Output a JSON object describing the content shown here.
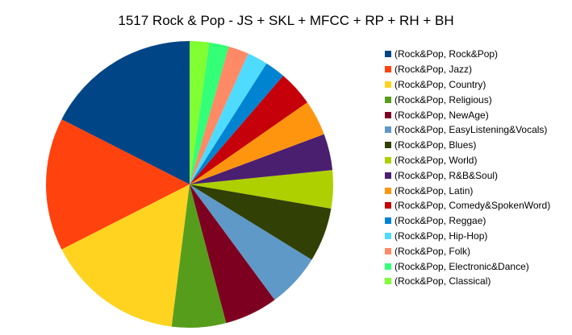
{
  "chart_data": {
    "type": "pie",
    "title": "1517 Rock & Pop - JS + SKL + MFCC + RP + RH + BH",
    "legend_position": "right",
    "slices": [
      {
        "label": "(Rock&Pop, Rock&Pop)",
        "value": 17.5,
        "color": "#004586"
      },
      {
        "label": "(Rock&Pop, Jazz)",
        "value": 15.0,
        "color": "#ff420e"
      },
      {
        "label": "(Rock&Pop, Country)",
        "value": 15.5,
        "color": "#ffd320"
      },
      {
        "label": "(Rock&Pop, Religious)",
        "value": 6.1,
        "color": "#579d1c"
      },
      {
        "label": "(Rock&Pop, NewAge)",
        "value": 6.0,
        "color": "#7e0021"
      },
      {
        "label": "(Rock&Pop, EasyListening&Vocals)",
        "value": 6.1,
        "color": "#5f99c7"
      },
      {
        "label": "(Rock&Pop, Blues)",
        "value": 6.1,
        "color": "#314004"
      },
      {
        "label": "(Rock&Pop, World)",
        "value": 4.3,
        "color": "#aecf00"
      },
      {
        "label": "(Rock&Pop, R&B&Soul)",
        "value": 4.1,
        "color": "#4b1f6f"
      },
      {
        "label": "(Rock&Pop, Latin)",
        "value": 4.0,
        "color": "#ff950e"
      },
      {
        "label": "(Rock&Pop, Comedy&SpokenWord)",
        "value": 4.0,
        "color": "#c5000b"
      },
      {
        "label": "(Rock&Pop, Reggae)",
        "value": 2.3,
        "color": "#0084d1"
      },
      {
        "label": "(Rock&Pop, Hip-Hop)",
        "value": 2.3,
        "color": "#4fdbff"
      },
      {
        "label": "(Rock&Pop, Folk)",
        "value": 2.3,
        "color": "#ff8a65"
      },
      {
        "label": "(Rock&Pop, Electronic&Dance)",
        "value": 2.2,
        "color": "#33ff77"
      },
      {
        "label": "(Rock&Pop, Classical)",
        "value": 2.2,
        "color": "#80ff33"
      }
    ]
  }
}
